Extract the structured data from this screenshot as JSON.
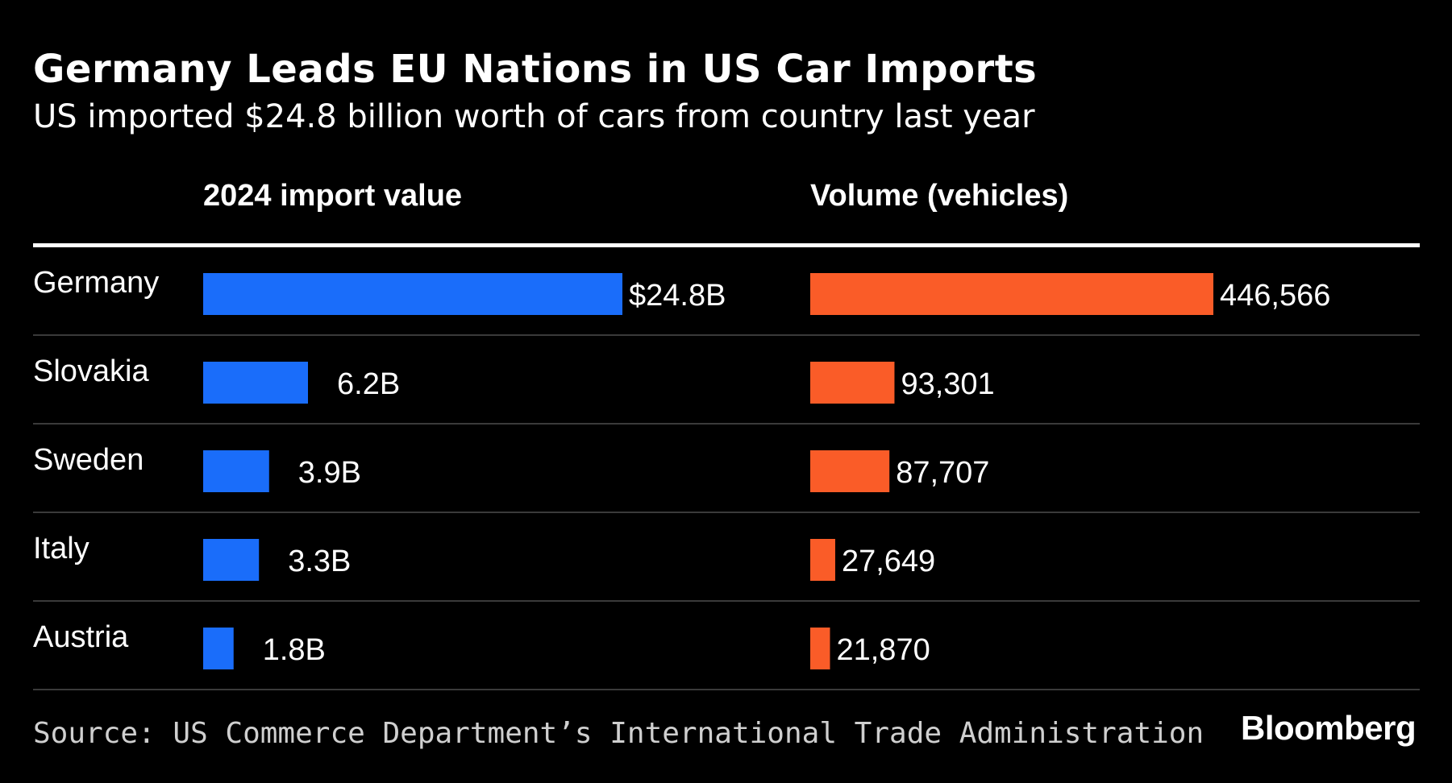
{
  "header": {
    "title": "Germany Leads EU Nations in US Car Imports",
    "subtitle": "US imported $24.8 billion worth of cars from country last year"
  },
  "footer": {
    "source": "Source: US Commerce Department’s International Trade Administration",
    "brand": "Bloomberg"
  },
  "colors": {
    "background": "#000000",
    "value_bar": "#1a6dfa",
    "volume_bar": "#fa5c28",
    "rule": "#ffffff",
    "divider": "#3a3a3a"
  },
  "chart_data": [
    {
      "type": "bar",
      "orientation": "horizontal",
      "title": "2024 import value",
      "categories": [
        "Germany",
        "Slovakia",
        "Sweden",
        "Italy",
        "Austria"
      ],
      "values": [
        24.8,
        6.2,
        3.9,
        3.3,
        1.8
      ],
      "value_labels": [
        "$24.8B",
        "6.2B",
        "3.9B",
        "3.3B",
        "1.8B"
      ],
      "xlim": [
        0,
        24.8
      ],
      "grid": false
    },
    {
      "type": "bar",
      "orientation": "horizontal",
      "title": "Volume (vehicles)",
      "categories": [
        "Germany",
        "Slovakia",
        "Sweden",
        "Italy",
        "Austria"
      ],
      "values": [
        446566,
        93301,
        87707,
        27649,
        21870
      ],
      "value_labels": [
        "446,566",
        "93,301",
        "87,707",
        "27,649",
        "21,870"
      ],
      "xlim": [
        0,
        446566
      ],
      "grid": false
    }
  ]
}
